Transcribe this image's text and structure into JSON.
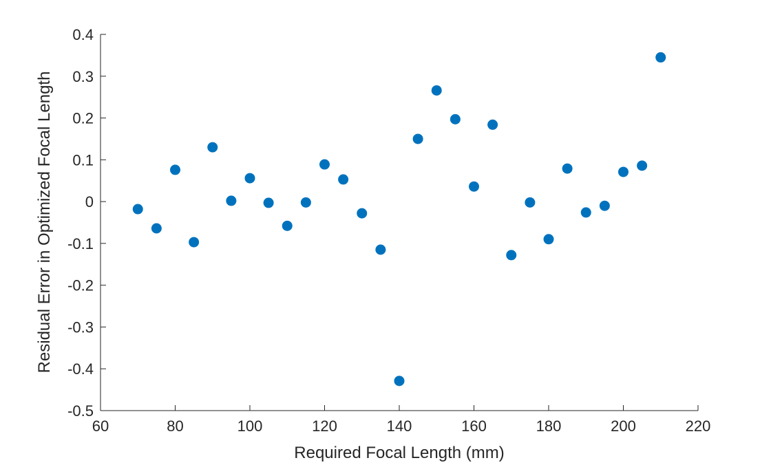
{
  "chart_data": {
    "type": "scatter",
    "title": "",
    "xlabel": "Required Focal Length (mm)",
    "ylabel": "Residual Error in Optimized Focal Length",
    "xlim": [
      60,
      220
    ],
    "ylim": [
      -0.5,
      0.4
    ],
    "xticks": [
      60,
      80,
      100,
      120,
      140,
      160,
      180,
      200,
      220
    ],
    "yticks": [
      -0.5,
      -0.4,
      -0.3,
      -0.2,
      -0.1,
      0,
      0.1,
      0.2,
      0.3,
      0.4
    ],
    "ytick_labels": [
      "-0.5",
      "-0.4",
      "-0.3",
      "-0.2",
      "-0.1",
      "0",
      "0.1",
      "0.2",
      "0.3",
      "0.4"
    ],
    "grid": false,
    "marker_color": "#0072BD",
    "x": [
      70,
      75,
      80,
      85,
      90,
      95,
      100,
      105,
      110,
      115,
      120,
      125,
      130,
      135,
      140,
      145,
      150,
      155,
      160,
      165,
      170,
      175,
      180,
      185,
      190,
      195,
      200,
      205,
      210
    ],
    "y": [
      -0.018,
      -0.064,
      0.076,
      -0.097,
      0.13,
      0.002,
      0.056,
      -0.003,
      -0.058,
      -0.002,
      0.089,
      0.053,
      -0.028,
      -0.115,
      -0.429,
      0.15,
      0.266,
      0.197,
      0.036,
      0.184,
      -0.128,
      -0.002,
      -0.09,
      0.079,
      -0.026,
      -0.01,
      0.071,
      0.086,
      0.345
    ]
  }
}
